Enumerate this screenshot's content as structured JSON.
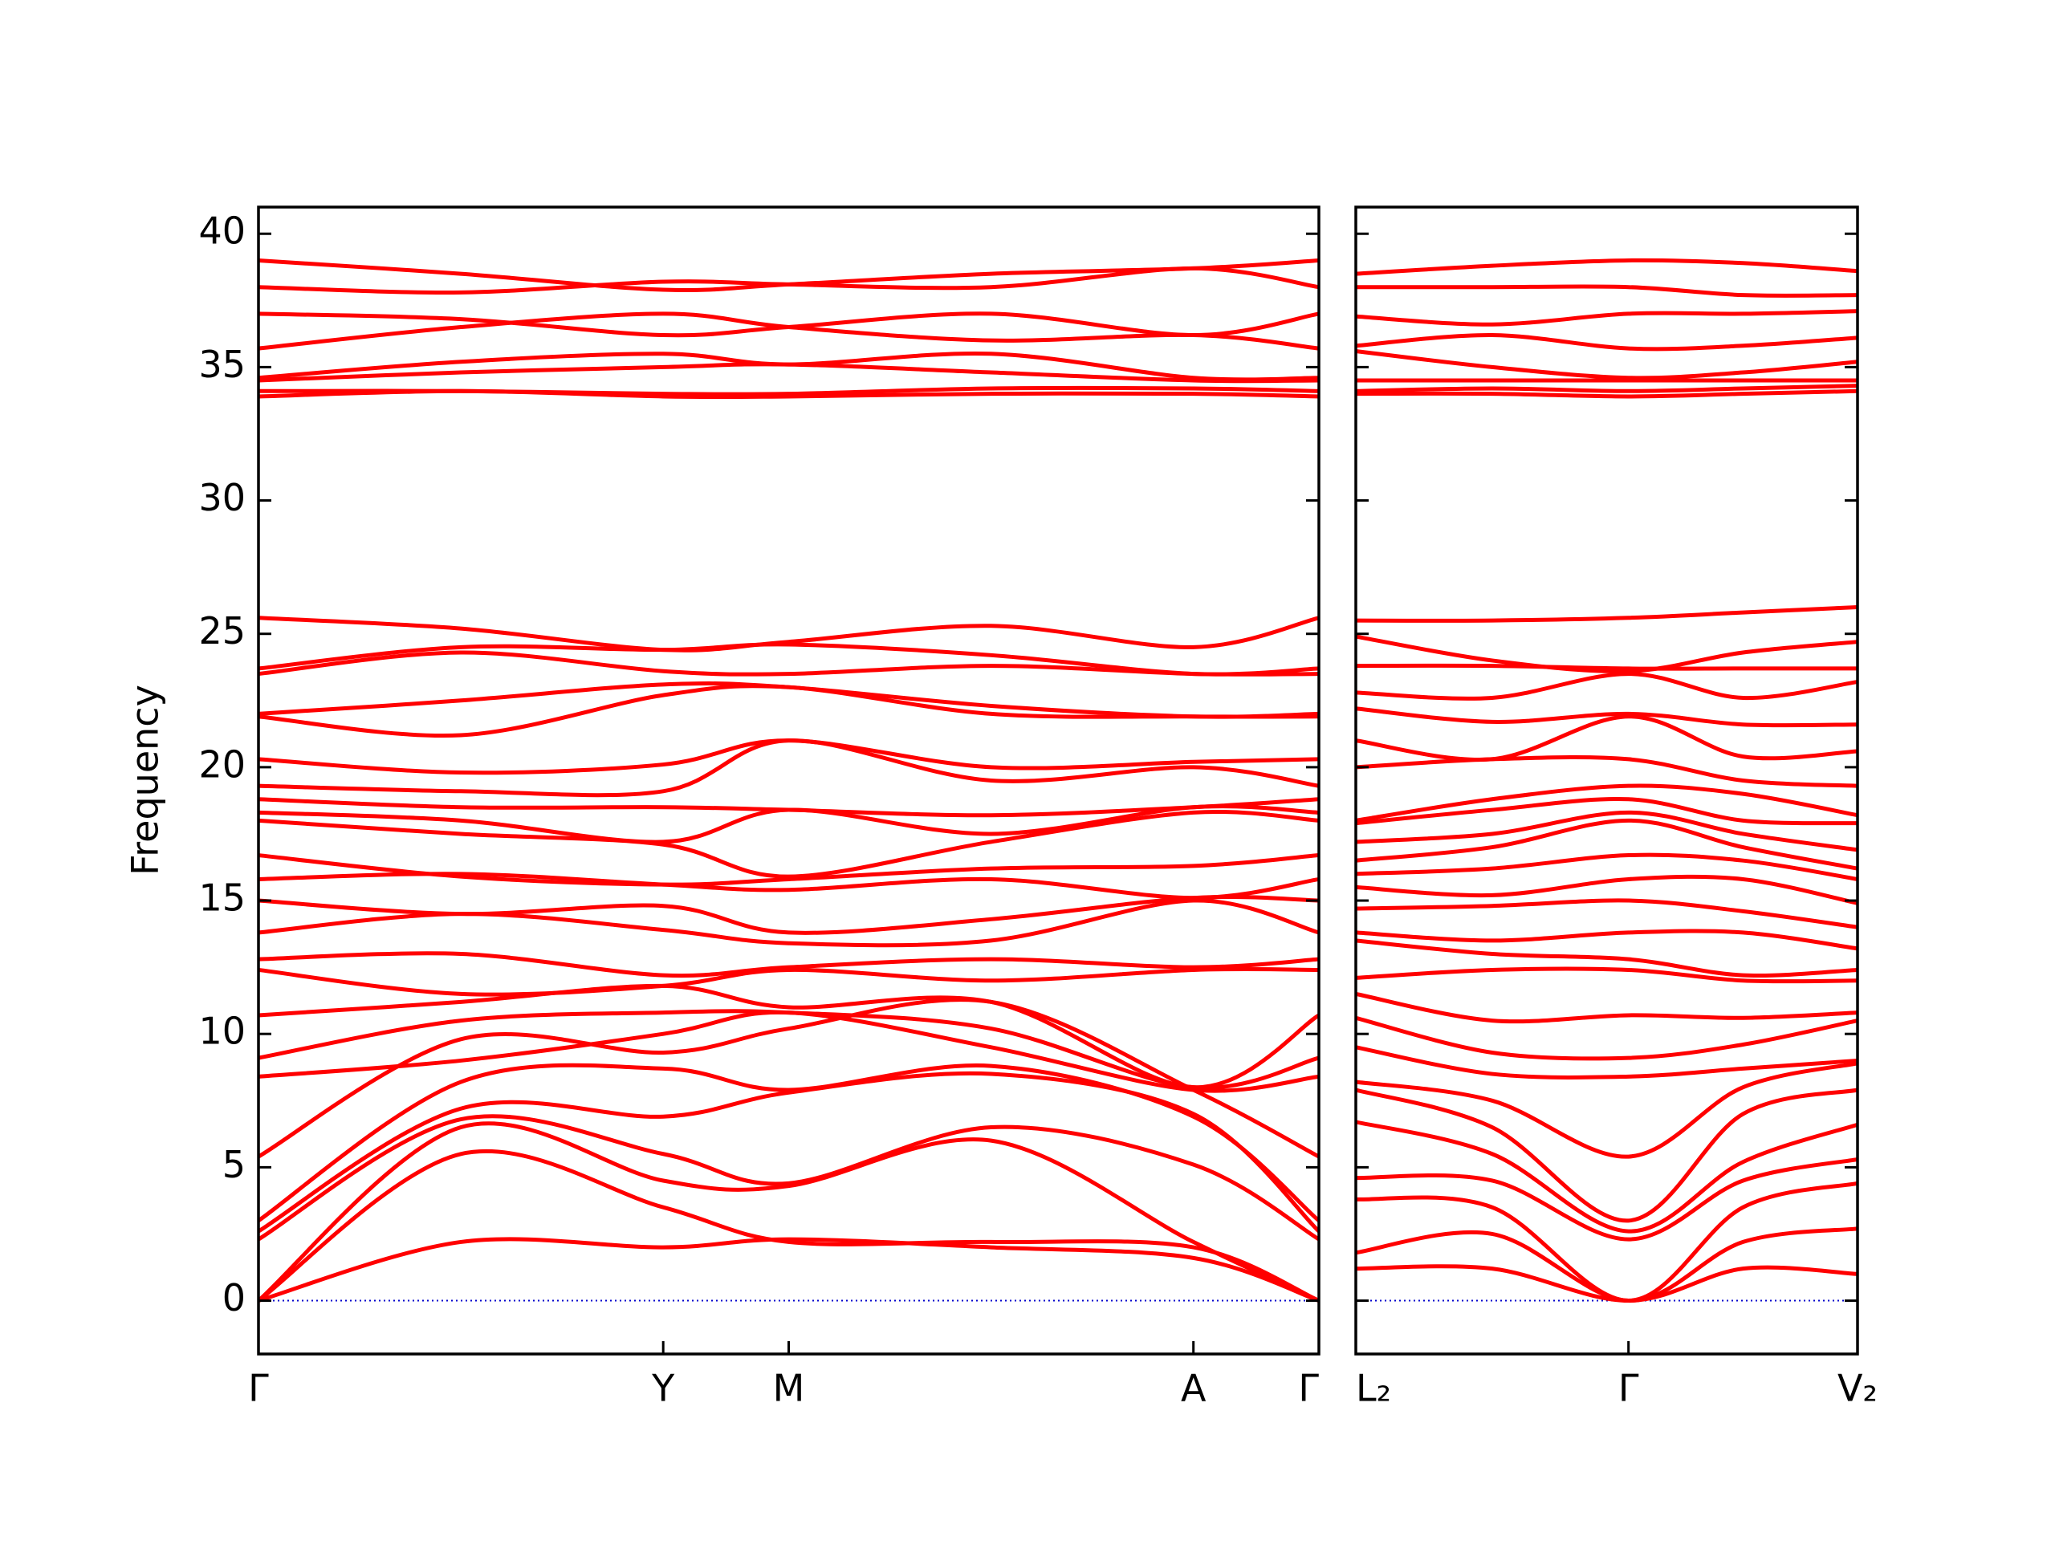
{
  "chart_data": [
    {
      "type": "line",
      "ylabel": "Frequency",
      "color": "#ff0000",
      "hline": 0,
      "hline_color": "#0000cc",
      "x": [
        0,
        0.5,
        1,
        1.31,
        1.81,
        2.31,
        2.62
      ],
      "xlim": [
        0,
        2.62
      ],
      "xticks": [
        {
          "value": 0,
          "label": "Γ"
        },
        {
          "value": 1,
          "label": "Y"
        },
        {
          "value": 1.31,
          "label": "M"
        },
        {
          "value": 2.31,
          "label": "A"
        },
        {
          "value": 2.62,
          "label": "Γ"
        }
      ],
      "ylim": [
        -2,
        41
      ],
      "yticks": [
        0,
        5,
        10,
        15,
        20,
        25,
        30,
        35,
        40
      ],
      "ytick_labels": true,
      "series": [
        {
          "values": [
            0,
            2.2,
            2.0,
            2.3,
            2.0,
            1.6,
            0
          ]
        },
        {
          "values": [
            0,
            5.5,
            3.5,
            2.2,
            2.2,
            2.0,
            0
          ]
        },
        {
          "values": [
            0,
            6.5,
            4.5,
            4.3,
            6.0,
            2.2,
            0
          ]
        },
        {
          "values": [
            2.3,
            6.8,
            5.5,
            4.4,
            6.5,
            5.1,
            2.3
          ]
        },
        {
          "values": [
            2.6,
            7.2,
            6.9,
            7.8,
            8.5,
            7.0,
            2.6
          ]
        },
        {
          "values": [
            3.0,
            8.2,
            8.7,
            7.9,
            8.8,
            6.9,
            3.0
          ]
        },
        {
          "values": [
            5.4,
            9.8,
            9.3,
            10.2,
            11.2,
            7.9,
            5.4
          ]
        },
        {
          "values": [
            8.4,
            9.0,
            10.0,
            10.8,
            9.5,
            7.9,
            8.4
          ]
        },
        {
          "values": [
            9.1,
            10.5,
            10.8,
            10.8,
            10.2,
            8.0,
            9.1
          ]
        },
        {
          "values": [
            10.7,
            11.2,
            11.8,
            11.0,
            11.2,
            8.0,
            10.7
          ]
        },
        {
          "values": [
            12.4,
            11.5,
            11.8,
            12.4,
            12.0,
            12.4,
            12.4
          ]
        },
        {
          "values": [
            12.8,
            13.0,
            12.2,
            12.5,
            12.8,
            12.5,
            12.8
          ]
        },
        {
          "values": [
            13.8,
            14.5,
            13.9,
            13.4,
            13.5,
            15.0,
            13.8
          ]
        },
        {
          "values": [
            15.0,
            14.5,
            14.8,
            13.8,
            14.3,
            15.1,
            15.0
          ]
        },
        {
          "values": [
            15.8,
            16.0,
            15.6,
            15.4,
            15.8,
            15.1,
            15.8
          ]
        },
        {
          "values": [
            16.7,
            15.9,
            15.6,
            15.8,
            16.2,
            16.3,
            16.7
          ]
        },
        {
          "values": [
            18.0,
            17.5,
            17.1,
            15.9,
            17.2,
            18.3,
            18.0
          ]
        },
        {
          "values": [
            18.3,
            18.0,
            17.2,
            18.4,
            17.5,
            18.5,
            18.3
          ]
        },
        {
          "values": [
            18.8,
            18.5,
            18.5,
            18.4,
            18.2,
            18.5,
            18.8
          ]
        },
        {
          "values": [
            19.3,
            19.1,
            19.1,
            21.0,
            19.5,
            20.0,
            19.3
          ]
        },
        {
          "values": [
            20.3,
            19.8,
            20.1,
            21.0,
            20.0,
            20.2,
            20.3
          ]
        },
        {
          "values": [
            21.9,
            21.2,
            22.7,
            23.0,
            22.0,
            21.9,
            21.9
          ]
        },
        {
          "values": [
            22.0,
            22.5,
            23.1,
            23.0,
            22.3,
            21.9,
            22.0
          ]
        },
        {
          "values": [
            23.5,
            24.3,
            23.6,
            23.5,
            23.8,
            23.5,
            23.5
          ]
        },
        {
          "values": [
            23.7,
            24.5,
            24.4,
            24.6,
            24.2,
            23.5,
            23.7
          ]
        },
        {
          "values": [
            25.6,
            25.2,
            24.4,
            24.7,
            25.3,
            24.5,
            25.6
          ]
        },
        {
          "values": [
            33.9,
            34.1,
            33.9,
            33.9,
            34.0,
            34.0,
            33.9
          ]
        },
        {
          "values": [
            34.1,
            34.1,
            34.0,
            34.0,
            34.2,
            34.2,
            34.1
          ]
        },
        {
          "values": [
            34.5,
            34.8,
            35.0,
            35.1,
            34.8,
            34.5,
            34.5
          ]
        },
        {
          "values": [
            34.6,
            35.2,
            35.5,
            35.1,
            35.5,
            34.6,
            34.6
          ]
        },
        {
          "values": [
            35.7,
            36.5,
            37.0,
            36.5,
            36.0,
            36.2,
            35.7
          ]
        },
        {
          "values": [
            37.0,
            36.8,
            36.2,
            36.5,
            37.0,
            36.2,
            37.0
          ]
        },
        {
          "values": [
            38.0,
            37.8,
            38.2,
            38.1,
            38.0,
            38.7,
            38.0
          ]
        },
        {
          "values": [
            39.0,
            38.5,
            37.9,
            38.1,
            38.5,
            38.7,
            39.0
          ]
        }
      ]
    },
    {
      "type": "line",
      "color": "#ff0000",
      "hline": 0,
      "hline_color": "#0000cc",
      "x": [
        0,
        0.5,
        1,
        1.42,
        1.84
      ],
      "xlim": [
        0,
        1.84
      ],
      "xticks": [
        {
          "value": 0,
          "label": "L₂"
        },
        {
          "value": 1,
          "label": "Γ"
        },
        {
          "value": 1.84,
          "label": "V₂"
        }
      ],
      "ylim": [
        -2,
        41
      ],
      "yticks": [
        0,
        5,
        10,
        15,
        20,
        25,
        30,
        35,
        40
      ],
      "ytick_labels": false,
      "series": [
        {
          "values": [
            1.2,
            1.2,
            0,
            1.2,
            1.0
          ]
        },
        {
          "values": [
            1.8,
            2.5,
            0,
            2.2,
            2.7
          ]
        },
        {
          "values": [
            3.8,
            3.5,
            0,
            3.5,
            4.4
          ]
        },
        {
          "values": [
            4.6,
            4.5,
            2.3,
            4.5,
            5.3
          ]
        },
        {
          "values": [
            6.7,
            5.5,
            2.6,
            5.2,
            6.6
          ]
        },
        {
          "values": [
            7.9,
            6.5,
            3.0,
            7.0,
            7.9
          ]
        },
        {
          "values": [
            8.2,
            7.5,
            5.4,
            8.0,
            8.9
          ]
        },
        {
          "values": [
            9.5,
            8.5,
            8.4,
            8.7,
            9.0
          ]
        },
        {
          "values": [
            10.6,
            9.3,
            9.1,
            9.6,
            10.5
          ]
        },
        {
          "values": [
            11.5,
            10.5,
            10.7,
            10.6,
            10.8
          ]
        },
        {
          "values": [
            12.1,
            12.4,
            12.4,
            12.0,
            12.0
          ]
        },
        {
          "values": [
            13.5,
            13.0,
            12.8,
            12.2,
            12.4
          ]
        },
        {
          "values": [
            13.8,
            13.5,
            13.8,
            13.8,
            13.2
          ]
        },
        {
          "values": [
            14.7,
            14.8,
            15.0,
            14.6,
            14.0
          ]
        },
        {
          "values": [
            15.5,
            15.2,
            15.8,
            15.8,
            14.9
          ]
        },
        {
          "values": [
            16.0,
            16.2,
            16.7,
            16.5,
            15.8
          ]
        },
        {
          "values": [
            16.5,
            17.0,
            18.0,
            17.0,
            16.2
          ]
        },
        {
          "values": [
            17.2,
            17.5,
            18.3,
            17.5,
            16.9
          ]
        },
        {
          "values": [
            17.9,
            18.4,
            18.8,
            18.0,
            17.9
          ]
        },
        {
          "values": [
            18.0,
            18.8,
            19.3,
            19.0,
            18.2
          ]
        },
        {
          "values": [
            20.0,
            20.3,
            20.3,
            19.5,
            19.3
          ]
        },
        {
          "values": [
            21.0,
            20.3,
            21.9,
            20.4,
            20.6
          ]
        },
        {
          "values": [
            22.2,
            21.7,
            22.0,
            21.6,
            21.6
          ]
        },
        {
          "values": [
            22.8,
            22.6,
            23.5,
            22.6,
            23.2
          ]
        },
        {
          "values": [
            23.8,
            23.8,
            23.7,
            23.7,
            23.7
          ]
        },
        {
          "values": [
            24.9,
            24.0,
            23.6,
            24.3,
            24.7
          ]
        },
        {
          "values": [
            25.5,
            25.5,
            25.6,
            25.8,
            26.0
          ]
        },
        {
          "values": [
            34.0,
            34.0,
            33.9,
            34.0,
            34.1
          ]
        },
        {
          "values": [
            34.1,
            34.2,
            34.1,
            34.2,
            34.3
          ]
        },
        {
          "values": [
            34.5,
            34.5,
            34.5,
            34.5,
            34.5
          ]
        },
        {
          "values": [
            35.6,
            35.0,
            34.6,
            34.8,
            35.2
          ]
        },
        {
          "values": [
            35.8,
            36.2,
            35.7,
            35.8,
            36.1
          ]
        },
        {
          "values": [
            36.9,
            36.6,
            37.0,
            37.0,
            37.1
          ]
        },
        {
          "values": [
            38.0,
            38.0,
            38.0,
            37.7,
            37.7
          ]
        },
        {
          "values": [
            38.5,
            38.8,
            39.0,
            38.9,
            38.6
          ]
        }
      ]
    }
  ]
}
